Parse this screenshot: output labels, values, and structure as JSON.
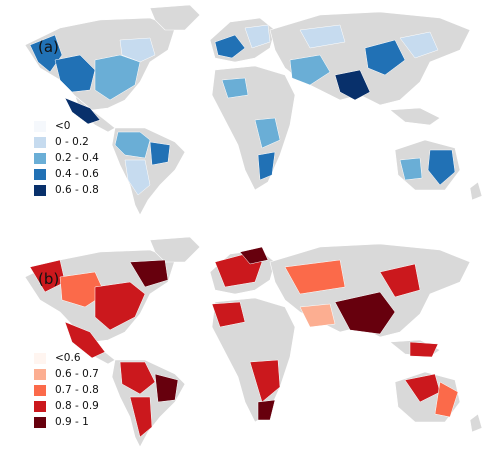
{
  "panels": [
    {
      "label": "(a)",
      "legend": [
        {
          "label": "<0",
          "color": "#f5f8fc"
        },
        {
          "label": "0 - 0.2",
          "color": "#c6dbef"
        },
        {
          "label": "0.2 - 0.4",
          "color": "#6aaed6"
        },
        {
          "label": "0.4 - 0.6",
          "color": "#2171b5"
        },
        {
          "label": "0.6 - 0.8",
          "color": "#08306b"
        }
      ]
    },
    {
      "label": "(b)",
      "legend": [
        {
          "label": "<0.6",
          "color": "#fff5f0"
        },
        {
          "label": "0.6 - 0.7",
          "color": "#fcae91"
        },
        {
          "label": "0.7 - 0.8",
          "color": "#fb6a4a"
        },
        {
          "label": "0.8 - 0.9",
          "color": "#cb181d"
        },
        {
          "label": "0.9 - 1",
          "color": "#67000d"
        }
      ]
    }
  ],
  "colors": {
    "land": "#d9d9d9",
    "background": "#ffffff"
  }
}
